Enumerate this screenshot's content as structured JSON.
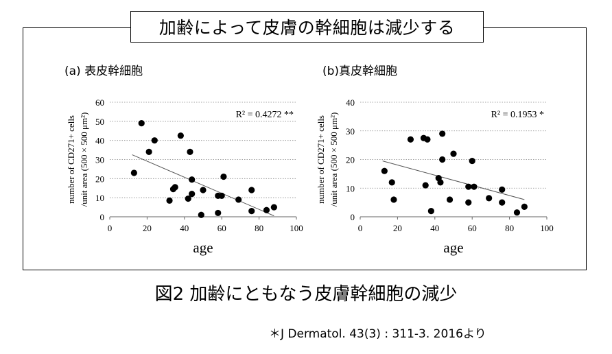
{
  "banner_title": "加齢によって皮膚の幹細胞は減少する",
  "figure_caption": "図2 加齢にともなう皮膚幹細胞の減少",
  "citation": "＊J Dermatol. 43(3) : 311-3. 2016より",
  "chart_data": [
    {
      "type": "scatter",
      "panel_label": "(a) 表皮幹細胞",
      "xlabel": "age",
      "ylabel_line1": "number of CD271+ cells",
      "ylabel_line2": "/unit area (500 × 500 μm²)",
      "r2_label": "R² = 0.4272 **",
      "xlim": [
        0,
        100
      ],
      "ylim": [
        0,
        60
      ],
      "xticks": [
        0,
        20,
        40,
        60,
        80,
        100
      ],
      "yticks": [
        0,
        10,
        20,
        30,
        40,
        50,
        60
      ],
      "gridlines": "horizontal dotted",
      "points": [
        [
          13,
          23
        ],
        [
          17,
          49
        ],
        [
          21,
          34
        ],
        [
          24,
          40
        ],
        [
          32,
          8.5
        ],
        [
          34,
          14.5
        ],
        [
          35,
          15.5
        ],
        [
          38,
          42.5
        ],
        [
          42,
          9.5
        ],
        [
          43,
          34
        ],
        [
          44,
          19.5
        ],
        [
          44,
          12
        ],
        [
          49,
          1
        ],
        [
          50,
          14
        ],
        [
          58,
          11
        ],
        [
          58,
          2
        ],
        [
          60,
          11
        ],
        [
          61,
          21
        ],
        [
          69,
          9
        ],
        [
          76,
          14
        ],
        [
          76,
          3
        ],
        [
          84,
          3.5
        ],
        [
          88,
          5
        ]
      ],
      "trendline": {
        "x": [
          12,
          88
        ],
        "y": [
          32.5,
          0.5
        ]
      }
    },
    {
      "type": "scatter",
      "panel_label": "(b)真皮幹細胞",
      "xlabel": "age",
      "ylabel_line1": "number of CD271+ cells",
      "ylabel_line2": "/unit area (500 × 500 μm²)",
      "r2_label": "R² = 0.1953  *",
      "xlim": [
        0,
        100
      ],
      "ylim": [
        0,
        40
      ],
      "xticks": [
        0,
        20,
        40,
        60,
        80,
        100
      ],
      "yticks": [
        0,
        10,
        20,
        30,
        40
      ],
      "gridlines": "horizontal dotted",
      "points": [
        [
          13,
          16
        ],
        [
          17,
          12
        ],
        [
          18,
          6
        ],
        [
          27,
          27
        ],
        [
          34,
          27.5
        ],
        [
          35,
          11
        ],
        [
          36,
          27
        ],
        [
          38,
          2
        ],
        [
          42,
          13.5
        ],
        [
          43,
          12
        ],
        [
          44,
          20
        ],
        [
          44,
          29
        ],
        [
          48,
          6
        ],
        [
          50,
          22
        ],
        [
          58,
          10.5
        ],
        [
          58,
          5
        ],
        [
          60,
          19.5
        ],
        [
          61,
          10.5
        ],
        [
          69,
          6.5
        ],
        [
          76,
          9.5
        ],
        [
          76,
          5
        ],
        [
          84,
          1.5
        ],
        [
          88,
          3.5
        ]
      ],
      "trendline": {
        "x": [
          12,
          88
        ],
        "y": [
          19.5,
          6
        ]
      }
    }
  ]
}
